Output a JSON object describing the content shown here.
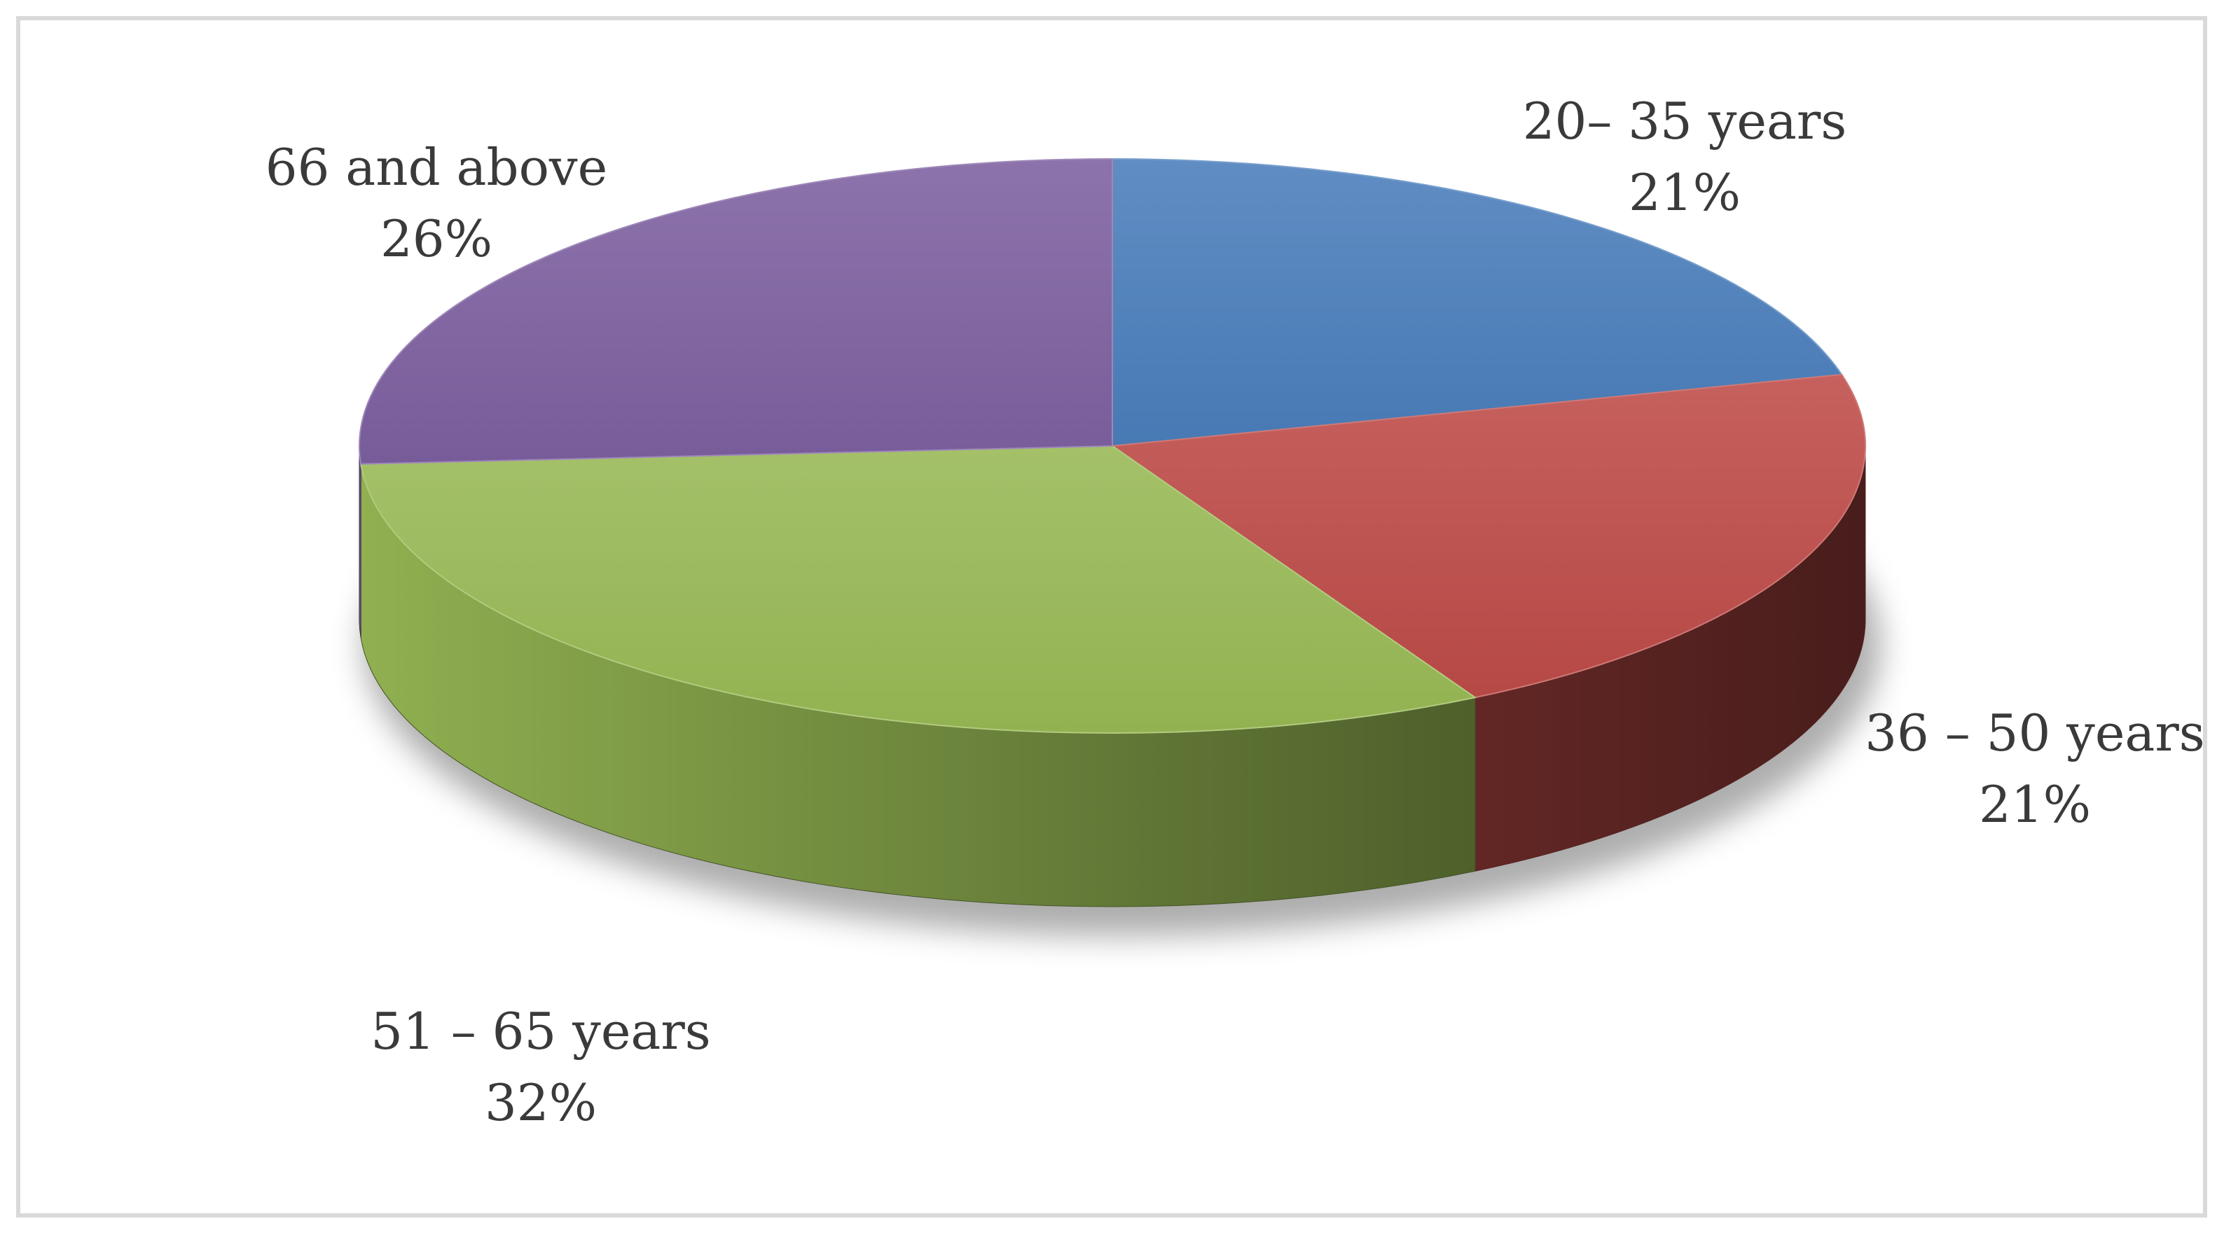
{
  "chart_data": {
    "type": "pie",
    "style": "3d-exploded-off",
    "legend": "none",
    "slices": [
      {
        "label": "20– 35 years",
        "percent_label": "21%",
        "value": 21,
        "color": "#4A7EBB"
      },
      {
        "label": "36 – 50 years",
        "percent_label": "21%",
        "value": 21,
        "color": "#BE4B48"
      },
      {
        "label": "51 – 65 years",
        "percent_label": "32%",
        "value": 32,
        "color": "#98B954"
      },
      {
        "label": "66 and above",
        "percent_label": "26%",
        "value": 26,
        "color": "#7D60A0"
      }
    ]
  }
}
